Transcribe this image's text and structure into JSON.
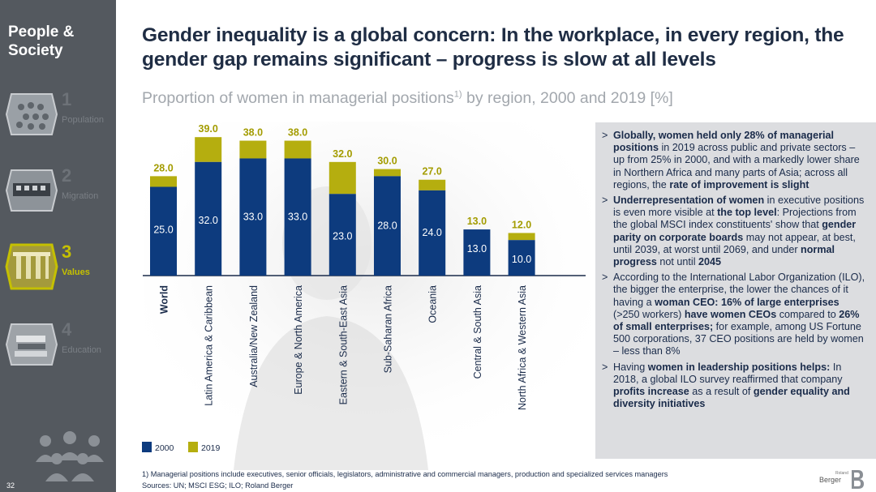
{
  "sidebar": {
    "section_title": "People & Society",
    "items": [
      {
        "number": "1",
        "label": "Population",
        "icon": "crowd-icon"
      },
      {
        "number": "2",
        "label": "Migration",
        "icon": "train-icon"
      },
      {
        "number": "3",
        "label": "Values",
        "icon": "columns-icon",
        "active": true
      },
      {
        "number": "4",
        "label": "Education",
        "icon": "books-icon"
      }
    ],
    "page_number": "32"
  },
  "header": {
    "title": "Gender inequality is a global concern: In the workplace, in every region, the gender gap remains significant – progress is slow at all levels",
    "subtitle": "Proportion of women in managerial positions",
    "subtitle_sup": "1)",
    "subtitle_tail": " by region, 2000 and 2019 [%]"
  },
  "chart_data": {
    "type": "bar",
    "categories": [
      "World",
      "Latin America & Caribbean",
      "Australia/New Zealand",
      "Europe & North America",
      "Eastern & South-East Asia",
      "Sub-Saharan Africa",
      "Oceania",
      "Central & South Asia",
      "North Africa & Western Asia"
    ],
    "series": [
      {
        "name": "2000",
        "values": [
          25.0,
          32.0,
          33.0,
          33.0,
          23.0,
          28.0,
          24.0,
          13.0,
          10.0
        ],
        "labels": [
          "25.0",
          "32.0",
          "33.0",
          "33.0",
          "23.0",
          "28.0",
          "24.0",
          "13.0",
          "10.0"
        ]
      },
      {
        "name": "2019",
        "values": [
          28.0,
          39.0,
          38.0,
          38.0,
          32.0,
          30.0,
          27.0,
          13.0,
          12.0
        ],
        "labels": [
          "28.0",
          "39.0",
          "38.0",
          "38.0",
          "32.0",
          "30.0",
          "27.0",
          "13.0",
          "12.0"
        ]
      }
    ],
    "ylim": [
      0,
      40
    ],
    "colors": {
      "2000": "#0d3b7e",
      "2019": "#b5ae0f",
      "world_2000": "#0d3b7e"
    }
  },
  "legend": {
    "label_2000": "2000",
    "label_2019": "2019"
  },
  "panel": {
    "bullets": [
      [
        [
          "b",
          "Globally, women held only 28% of managerial positions"
        ],
        [
          "t",
          " in 2019 across public and private sectors – up from 25% in 2000, and with a markedly lower share in Northern Africa and many parts of Asia; across all regions, the "
        ],
        [
          "b",
          "rate of improvement is slight"
        ]
      ],
      [
        [
          "b",
          "Underrepresentation of women"
        ],
        [
          "t",
          " in executive positions is even more visible at "
        ],
        [
          "b",
          "the top level"
        ],
        [
          "t",
          ": Projections from the global MSCI index constituents' show that "
        ],
        [
          "b",
          "gender parity on corporate boards"
        ],
        [
          "t",
          " may not appear, at best, until 2039, at worst until 2069, and under "
        ],
        [
          "b",
          "normal progress"
        ],
        [
          "t",
          " not until "
        ],
        [
          "b",
          "2045"
        ]
      ],
      [
        [
          "t",
          "According to the International Labor Organization (ILO), the bigger the enterprise, the lower the chances of it having a "
        ],
        [
          "b",
          "woman CEO: 16% of large enterprises"
        ],
        [
          "t",
          " (>250 workers) "
        ],
        [
          "b",
          "have women CEOs"
        ],
        [
          "t",
          " compared to "
        ],
        [
          "b",
          "26% of small enterprises;"
        ],
        [
          "t",
          " for example, among US Fortune 500 corporations, 37 CEO positions are held by women – less than 8%"
        ]
      ],
      [
        [
          "t",
          "Having "
        ],
        [
          "b",
          "women in leadership positions helps:"
        ],
        [
          "t",
          " In 2018, a global ILO survey reaffirmed that company "
        ],
        [
          "b",
          "profits increase"
        ],
        [
          "t",
          " as a result of "
        ],
        [
          "b",
          "gender equality and diversity initiatives"
        ]
      ]
    ]
  },
  "footer": {
    "footnote": "1) Managerial positions include executives, senior officials, legislators, administrative and commercial managers, production and specialized services managers",
    "sources": "Sources: UN; MSCI ESG; ILO; Roland Berger"
  },
  "logo": {
    "line1": "Roland",
    "line2": "Berger"
  }
}
